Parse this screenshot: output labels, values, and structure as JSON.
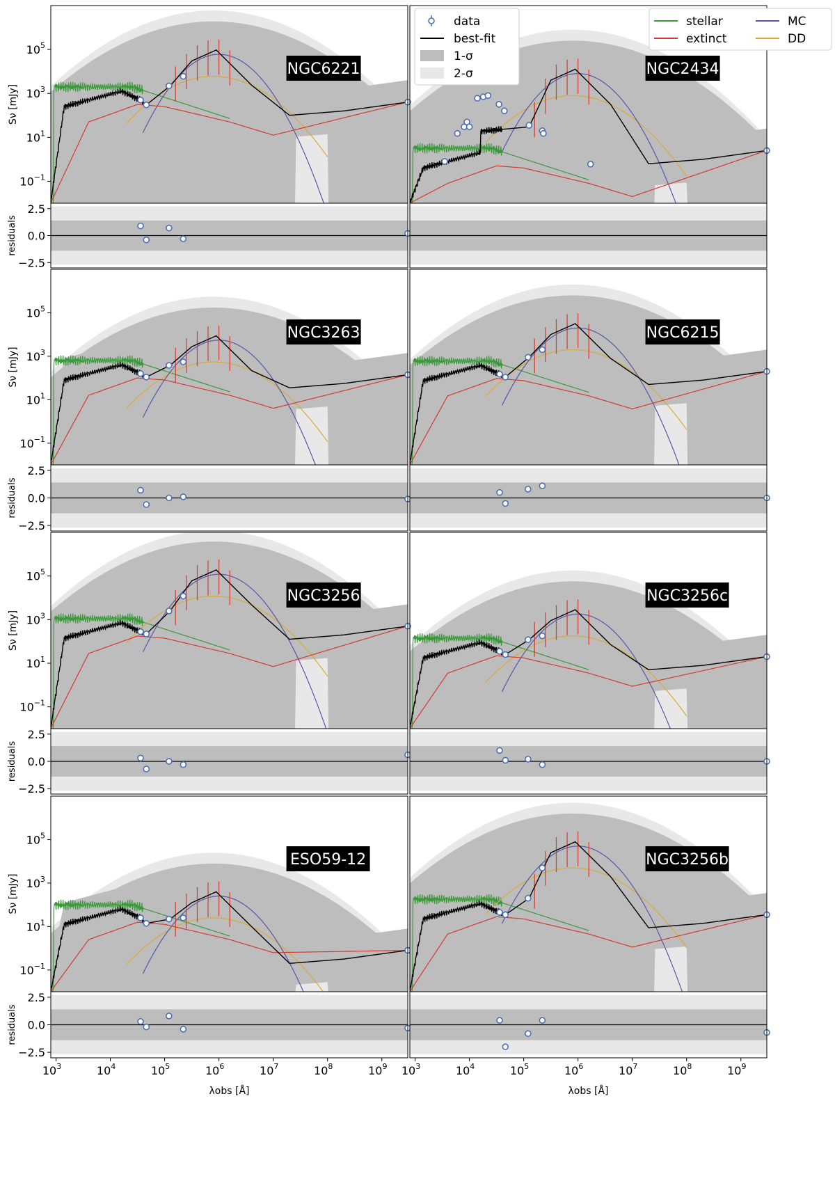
{
  "chart_data": {
    "type": "line",
    "xlabel": "λobs [Å]",
    "ylabel": "Sν [mJy]",
    "residual_ylabel": "residuals",
    "xscale": "log",
    "yscale": "log",
    "xlim": [
      800,
      3000000000
    ],
    "ylim": [
      0.01,
      10000000
    ],
    "residual_ylim": [
      -3,
      3
    ],
    "x_ticks": [
      "10^3",
      "10^4",
      "10^5",
      "10^6",
      "10^7",
      "10^8",
      "10^9"
    ],
    "y_ticks": [
      "10^-1",
      "10^1",
      "10^3",
      "10^5"
    ],
    "residual_ticks": [
      "2.5",
      "0.0",
      "-2.5"
    ],
    "legend": {
      "left": [
        {
          "name": "data",
          "color": "#4a6fb5"
        },
        {
          "name": "best-fit",
          "color": "#000000"
        },
        {
          "name": "1-σ",
          "color": "#bdbdbd"
        },
        {
          "name": "2-σ",
          "color": "#e8e8e8"
        }
      ],
      "right": [
        {
          "name": "stellar",
          "color": "#3a9a3a"
        },
        {
          "name": "MC",
          "color": "#5a55a8"
        },
        {
          "name": "extinct",
          "color": "#d23a32"
        },
        {
          "name": "DD",
          "color": "#d9a93a"
        }
      ],
      "placement": "top of NGC2434 panel"
    },
    "colors": {
      "stellar": "#3a9a3a",
      "extinct": "#d23a32",
      "mc": "#5a55a8",
      "dd": "#d9a93a",
      "bestfit": "#000000",
      "sigma1": "#bdbdbd",
      "sigma2": "#e8e8e8",
      "data": "#4a6fb5"
    },
    "panels": [
      {
        "name": "NGC6221",
        "data": [
          [
            36000,
            500
          ],
          [
            46000,
            300
          ],
          [
            120000,
            2200
          ],
          [
            220000,
            6000
          ],
          [
            3000000000,
            400
          ]
        ],
        "residuals": [
          [
            36000,
            0.9
          ],
          [
            46000,
            -0.4
          ],
          [
            120000,
            0.7
          ],
          [
            220000,
            -0.3
          ],
          [
            3000000000,
            0.2
          ]
        ]
      },
      {
        "name": "NGC2434",
        "data": [
          [
            3500,
            0.8
          ],
          [
            6000,
            15
          ],
          [
            8000,
            30
          ],
          [
            9000,
            50
          ],
          [
            10000,
            30
          ],
          [
            14000,
            600
          ],
          [
            18000,
            700
          ],
          [
            22000,
            800
          ],
          [
            35000,
            320
          ],
          [
            44000,
            160
          ],
          [
            125000,
            35
          ],
          [
            220000,
            20
          ],
          [
            230000,
            15
          ],
          [
            1700000,
            0.6
          ],
          [
            3000000000,
            2.5
          ]
        ],
        "residuals": []
      },
      {
        "name": "NGC3263",
        "data": [
          [
            36000,
            160
          ],
          [
            46000,
            110
          ],
          [
            120000,
            380
          ],
          [
            220000,
            550
          ],
          [
            3000000000,
            140
          ]
        ],
        "residuals": [
          [
            36000,
            0.7
          ],
          [
            46000,
            -0.6
          ],
          [
            120000,
            0.0
          ],
          [
            220000,
            0.1
          ],
          [
            3000000000,
            -0.1
          ]
        ]
      },
      {
        "name": "NGC6215",
        "data": [
          [
            36000,
            150
          ],
          [
            46000,
            110
          ],
          [
            120000,
            900
          ],
          [
            220000,
            2000
          ],
          [
            3000000000,
            200
          ]
        ],
        "residuals": [
          [
            36000,
            0.5
          ],
          [
            46000,
            -0.5
          ],
          [
            120000,
            0.8
          ],
          [
            220000,
            1.1
          ],
          [
            3000000000,
            0.0
          ]
        ]
      },
      {
        "name": "NGC3256",
        "data": [
          [
            36000,
            280
          ],
          [
            46000,
            220
          ],
          [
            120000,
            2500
          ],
          [
            220000,
            12000
          ],
          [
            3000000000,
            500
          ]
        ],
        "residuals": [
          [
            36000,
            0.3
          ],
          [
            46000,
            -0.7
          ],
          [
            120000,
            0.0
          ],
          [
            220000,
            -0.3
          ],
          [
            3000000000,
            0.6
          ]
        ]
      },
      {
        "name": "NGC3256c",
        "data": [
          [
            36000,
            35
          ],
          [
            46000,
            25
          ],
          [
            120000,
            120
          ],
          [
            220000,
            180
          ],
          [
            3000000000,
            20
          ]
        ],
        "residuals": [
          [
            36000,
            1.0
          ],
          [
            46000,
            0.1
          ],
          [
            120000,
            0.2
          ],
          [
            220000,
            -0.3
          ],
          [
            3000000000,
            0.0
          ]
        ]
      },
      {
        "name": "ESO59-12",
        "data": [
          [
            36000,
            25
          ],
          [
            46000,
            14
          ],
          [
            120000,
            22
          ],
          [
            220000,
            25
          ],
          [
            3000000000,
            0.8
          ]
        ],
        "residuals": [
          [
            36000,
            0.3
          ],
          [
            46000,
            -0.2
          ],
          [
            120000,
            0.8
          ],
          [
            220000,
            -0.4
          ],
          [
            3000000000,
            -0.3
          ]
        ]
      },
      {
        "name": "NGC3256b",
        "data": [
          [
            36000,
            45
          ],
          [
            46000,
            35
          ],
          [
            120000,
            200
          ],
          [
            220000,
            5000
          ],
          [
            3000000000,
            35
          ]
        ],
        "residuals": [
          [
            36000,
            0.4
          ],
          [
            46000,
            -2.0
          ],
          [
            120000,
            -0.8
          ],
          [
            220000,
            0.4
          ],
          [
            3000000000,
            -0.7
          ]
        ]
      }
    ]
  }
}
